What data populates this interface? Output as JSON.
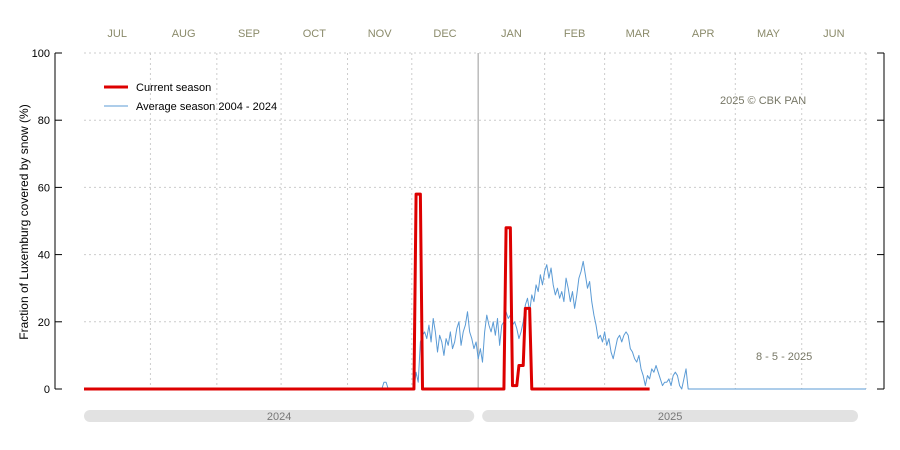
{
  "chart_data": {
    "type": "line",
    "ylabel": "Fraction of  Luxemburg  covered by snow (%)",
    "ylim": [
      0,
      100
    ],
    "yticks": [
      0,
      20,
      40,
      60,
      80,
      100
    ],
    "months": [
      "JUL",
      "AUG",
      "SEP",
      "OCT",
      "NOV",
      "DEC",
      "JAN",
      "FEB",
      "MAR",
      "APR",
      "MAY",
      "JUN"
    ],
    "season_years": [
      "2024",
      "2025"
    ],
    "copyright": "2025  © CBK PAN",
    "date_label": "8 - 5 - 2025",
    "grid": true,
    "legend_position": "top-left",
    "series": [
      {
        "name": "Current season",
        "color": "#dd0000",
        "points": [
          [
            0,
            0
          ],
          [
            154,
            0
          ],
          [
            155,
            58
          ],
          [
            156,
            58
          ],
          [
            157,
            58
          ],
          [
            158,
            0
          ],
          [
            196,
            0
          ],
          [
            197,
            48
          ],
          [
            198,
            48
          ],
          [
            199,
            48
          ],
          [
            200,
            1
          ],
          [
            201,
            1
          ],
          [
            202,
            1
          ],
          [
            203,
            7
          ],
          [
            204,
            7
          ],
          [
            205,
            7
          ],
          [
            206,
            24
          ],
          [
            207,
            24
          ],
          [
            208,
            24
          ],
          [
            209,
            0
          ],
          [
            264,
            0
          ]
        ]
      },
      {
        "name": "Average season 2004 - 2024",
        "color": "#5b9bd5",
        "points": [
          [
            0,
            0
          ],
          [
            139,
            0
          ],
          [
            140,
            2
          ],
          [
            141,
            2
          ],
          [
            142,
            0
          ],
          [
            154,
            0
          ],
          [
            155,
            5
          ],
          [
            156,
            2
          ],
          [
            157,
            14
          ],
          [
            158,
            16
          ],
          [
            159,
            17
          ],
          [
            160,
            15
          ],
          [
            161,
            19
          ],
          [
            162,
            14
          ],
          [
            163,
            21
          ],
          [
            164,
            17
          ],
          [
            165,
            11
          ],
          [
            166,
            16
          ],
          [
            167,
            14
          ],
          [
            168,
            10
          ],
          [
            169,
            15
          ],
          [
            170,
            13
          ],
          [
            171,
            17
          ],
          [
            172,
            12
          ],
          [
            173,
            14
          ],
          [
            174,
            18
          ],
          [
            175,
            20
          ],
          [
            176,
            13
          ],
          [
            177,
            17
          ],
          [
            178,
            19
          ],
          [
            179,
            23
          ],
          [
            180,
            17
          ],
          [
            181,
            15
          ],
          [
            182,
            12
          ],
          [
            183,
            14
          ],
          [
            184,
            9
          ],
          [
            185,
            12
          ],
          [
            186,
            8
          ],
          [
            187,
            17
          ],
          [
            188,
            22
          ],
          [
            189,
            19
          ],
          [
            190,
            17
          ],
          [
            191,
            20
          ],
          [
            192,
            16
          ],
          [
            193,
            21
          ],
          [
            194,
            13
          ],
          [
            195,
            19
          ],
          [
            196,
            20
          ],
          [
            197,
            23
          ],
          [
            198,
            21
          ],
          [
            199,
            22
          ],
          [
            200,
            19
          ],
          [
            201,
            20
          ],
          [
            202,
            18
          ],
          [
            203,
            15
          ],
          [
            204,
            17
          ],
          [
            205,
            20
          ],
          [
            206,
            25
          ],
          [
            207,
            27
          ],
          [
            208,
            23
          ],
          [
            209,
            28
          ],
          [
            210,
            26
          ],
          [
            211,
            31
          ],
          [
            212,
            29
          ],
          [
            213,
            34
          ],
          [
            214,
            31
          ],
          [
            215,
            35
          ],
          [
            216,
            37
          ],
          [
            217,
            33
          ],
          [
            218,
            36
          ],
          [
            219,
            31
          ],
          [
            220,
            28
          ],
          [
            221,
            30
          ],
          [
            222,
            27
          ],
          [
            223,
            29
          ],
          [
            224,
            26
          ],
          [
            225,
            33
          ],
          [
            226,
            30
          ],
          [
            227,
            26
          ],
          [
            228,
            29
          ],
          [
            229,
            24
          ],
          [
            230,
            28
          ],
          [
            231,
            33
          ],
          [
            232,
            35
          ],
          [
            233,
            38
          ],
          [
            234,
            34
          ],
          [
            235,
            30
          ],
          [
            236,
            32
          ],
          [
            237,
            26
          ],
          [
            238,
            22
          ],
          [
            239,
            19
          ],
          [
            240,
            15
          ],
          [
            241,
            16
          ],
          [
            242,
            14
          ],
          [
            243,
            17
          ],
          [
            244,
            13
          ],
          [
            245,
            15
          ],
          [
            246,
            11
          ],
          [
            247,
            9
          ],
          [
            248,
            12
          ],
          [
            249,
            15
          ],
          [
            250,
            16
          ],
          [
            251,
            14
          ],
          [
            252,
            16
          ],
          [
            253,
            17
          ],
          [
            254,
            16
          ],
          [
            255,
            12
          ],
          [
            256,
            11
          ],
          [
            257,
            9
          ],
          [
            258,
            8
          ],
          [
            259,
            10
          ],
          [
            260,
            6
          ],
          [
            261,
            4
          ],
          [
            262,
            1
          ],
          [
            263,
            4
          ],
          [
            264,
            3
          ],
          [
            265,
            6
          ],
          [
            266,
            5
          ],
          [
            267,
            7
          ],
          [
            268,
            5
          ],
          [
            269,
            3
          ],
          [
            270,
            1
          ],
          [
            271,
            2
          ],
          [
            272,
            2
          ],
          [
            273,
            3
          ],
          [
            274,
            1
          ],
          [
            275,
            4
          ],
          [
            276,
            5
          ],
          [
            277,
            4
          ],
          [
            278,
            1
          ],
          [
            279,
            0
          ],
          [
            280,
            3
          ],
          [
            281,
            6
          ],
          [
            282,
            0
          ],
          [
            365,
            0
          ]
        ]
      }
    ]
  }
}
